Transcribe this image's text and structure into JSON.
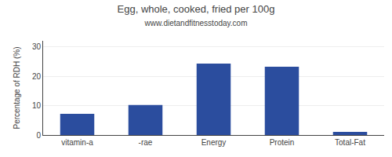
{
  "chart_data": {
    "type": "bar",
    "title": "Egg, whole, cooked, fried per 100g",
    "subtitle": "www.dietandfitnesstoday.com",
    "categories": [
      "vitamin-a",
      "-rae",
      "Energy",
      "Protein",
      "Total-Fat"
    ],
    "values": [
      7.2,
      10.2,
      24.3,
      23.2,
      1.1
    ],
    "color": "#2b4d9e",
    "ylabel": "Percentage of RDH (%)",
    "ylim": [
      0,
      32
    ],
    "yticks": [
      0,
      10,
      20,
      30
    ],
    "grid": true
  }
}
